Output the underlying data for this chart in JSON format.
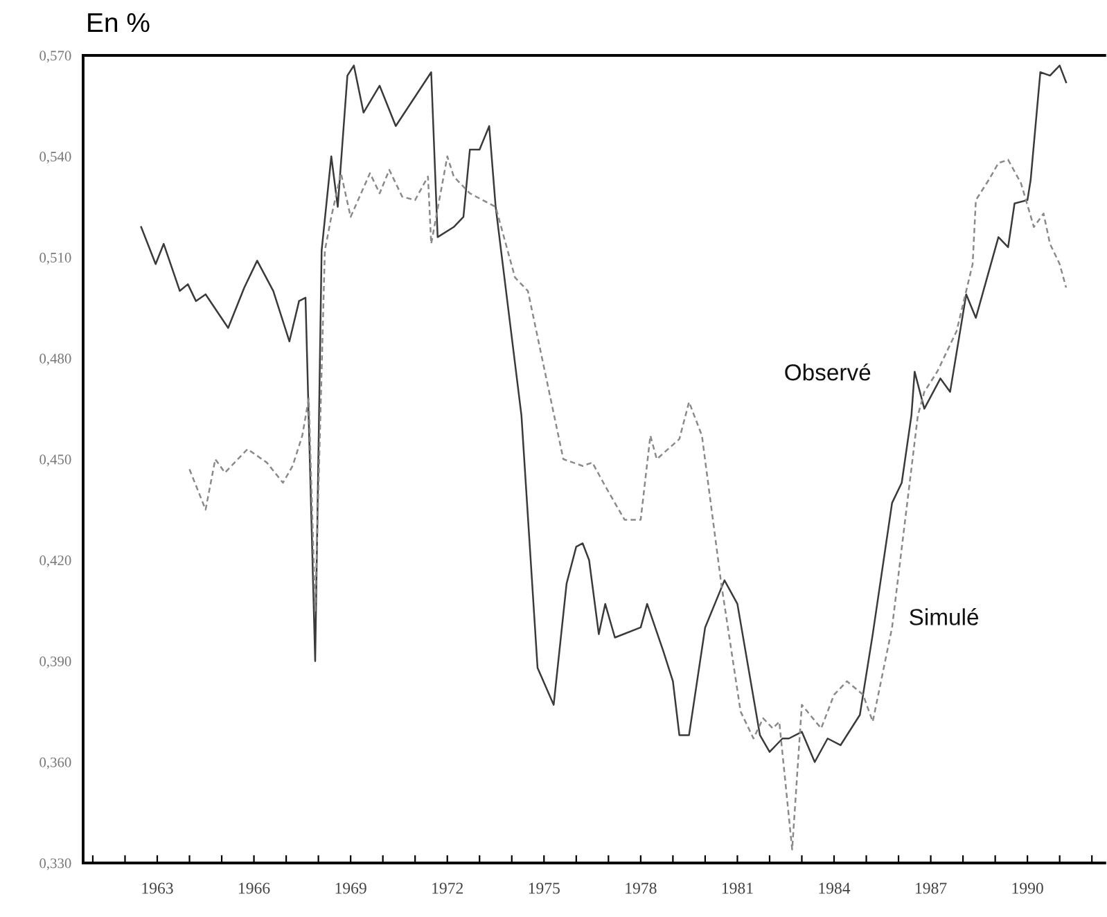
{
  "chart_data": {
    "type": "line",
    "ylabel": "En %",
    "xlim": [
      1960.7,
      1992.4
    ],
    "xticks": [
      {
        "value": 1961,
        "label": null
      },
      {
        "value": 1962,
        "label": null
      },
      1963,
      {
        "value": 1964,
        "label": null
      },
      {
        "value": 1965,
        "label": null
      },
      1966,
      {
        "value": 1967,
        "label": null
      },
      {
        "value": 1968,
        "label": null
      },
      1969,
      {
        "value": 1970,
        "label": null
      },
      {
        "value": 1971,
        "label": null
      },
      1972,
      {
        "value": 1973,
        "label": null
      },
      {
        "value": 1974,
        "label": null
      },
      1975,
      {
        "value": 1976,
        "label": null
      },
      {
        "value": 1977,
        "label": null
      },
      1978,
      {
        "value": 1979,
        "label": null
      },
      {
        "value": 1980,
        "label": null
      },
      1981,
      {
        "value": 1982,
        "label": null
      },
      {
        "value": 1983,
        "label": null
      },
      1984,
      {
        "value": 1985,
        "label": null
      },
      {
        "value": 1986,
        "label": null
      },
      1987,
      {
        "value": 1988,
        "label": null
      },
      {
        "value": 1989,
        "label": null
      },
      1990,
      {
        "value": 1991,
        "label": null
      },
      {
        "value": 1992,
        "label": null
      }
    ],
    "ylim": [
      0.33,
      0.57
    ],
    "yticks": [
      {
        "value": 0.33,
        "label": "0,330"
      },
      {
        "value": 0.36,
        "label": "0,360"
      },
      {
        "value": 0.39,
        "label": "0,390"
      },
      {
        "value": 0.42,
        "label": "0,420"
      },
      {
        "value": 0.45,
        "label": "0,450"
      },
      {
        "value": 0.48,
        "label": "0,480"
      },
      {
        "value": 0.51,
        "label": "0,510"
      },
      {
        "value": 0.54,
        "label": "0,540"
      },
      {
        "value": 0.57,
        "label": "0,570"
      }
    ],
    "grid": false,
    "legend": false,
    "series": [
      {
        "name": "Observé",
        "color": "#3a3a3a",
        "line_style": "solid",
        "x": [
          1962.5,
          1962.95,
          1963.2,
          1963.7,
          1963.95,
          1964.2,
          1964.5,
          1965.2,
          1965.7,
          1966.1,
          1966.6,
          1967.1,
          1967.4,
          1967.6,
          1967.9,
          1968.1,
          1968.4,
          1968.6,
          1968.9,
          1969.1,
          1969.4,
          1969.9,
          1970.4,
          1971.5,
          1971.7,
          1972.2,
          1972.5,
          1972.7,
          1973.0,
          1973.3,
          1973.5,
          1974.3,
          1974.8,
          1975.3,
          1975.7,
          1976.0,
          1976.2,
          1976.4,
          1976.7,
          1976.9,
          1977.2,
          1978.0,
          1978.2,
          1978.7,
          1979.0,
          1979.2,
          1979.5,
          1980.0,
          1980.6,
          1981.0,
          1981.7,
          1982.0,
          1982.4,
          1982.6,
          1983.0,
          1983.4,
          1983.8,
          1984.2,
          1984.8,
          1985.2,
          1985.8,
          1986.1,
          1986.4,
          1986.5,
          1986.8,
          1987.3,
          1987.6,
          1988.1,
          1988.4,
          1989.1,
          1989.4,
          1989.6,
          1990.0,
          1990.1,
          1990.4,
          1990.7,
          1991.0,
          1991.2
        ],
        "values": [
          0.519,
          0.508,
          0.514,
          0.5,
          0.502,
          0.497,
          0.499,
          0.489,
          0.501,
          0.509,
          0.5,
          0.485,
          0.497,
          0.498,
          0.39,
          0.512,
          0.54,
          0.525,
          0.564,
          0.567,
          0.553,
          0.561,
          0.549,
          0.565,
          0.516,
          0.519,
          0.522,
          0.542,
          0.542,
          0.549,
          0.525,
          0.463,
          0.388,
          0.377,
          0.413,
          0.424,
          0.425,
          0.42,
          0.398,
          0.407,
          0.397,
          0.4,
          0.407,
          0.393,
          0.384,
          0.368,
          0.368,
          0.4,
          0.414,
          0.407,
          0.368,
          0.363,
          0.367,
          0.367,
          0.369,
          0.36,
          0.367,
          0.365,
          0.374,
          0.398,
          0.437,
          0.443,
          0.463,
          0.476,
          0.465,
          0.474,
          0.47,
          0.499,
          0.492,
          0.516,
          0.513,
          0.526,
          0.527,
          0.533,
          0.565,
          0.564,
          0.567,
          0.562
        ]
      },
      {
        "name": "Simulé",
        "color": "#8a8a8a",
        "line_style": "dashed",
        "x": [
          1964.0,
          1964.5,
          1964.8,
          1965.1,
          1965.4,
          1965.8,
          1966.4,
          1966.9,
          1967.2,
          1967.5,
          1967.7,
          1967.9,
          1968.2,
          1968.4,
          1968.7,
          1969.0,
          1969.6,
          1969.9,
          1970.2,
          1970.6,
          1971.0,
          1971.4,
          1971.5,
          1972.0,
          1972.2,
          1972.7,
          1973.5,
          1974.1,
          1974.5,
          1975.6,
          1976.2,
          1976.5,
          1976.9,
          1977.5,
          1978.0,
          1978.3,
          1978.5,
          1979.2,
          1979.5,
          1979.9,
          1980.5,
          1981.1,
          1981.5,
          1981.8,
          1982.1,
          1982.3,
          1982.7,
          1983.0,
          1983.6,
          1984.0,
          1984.4,
          1984.9,
          1985.2,
          1985.8,
          1986.6,
          1986.8,
          1987.2,
          1987.8,
          1988.3,
          1988.4,
          1988.8,
          1989.1,
          1989.4,
          1989.8,
          1990.2,
          1990.5,
          1990.7,
          1991.0,
          1991.2
        ],
        "values": [
          0.447,
          0.435,
          0.45,
          0.446,
          0.449,
          0.453,
          0.449,
          0.443,
          0.448,
          0.457,
          0.468,
          0.405,
          0.512,
          0.522,
          0.535,
          0.522,
          0.535,
          0.529,
          0.536,
          0.528,
          0.527,
          0.534,
          0.514,
          0.54,
          0.534,
          0.529,
          0.525,
          0.504,
          0.5,
          0.45,
          0.448,
          0.449,
          0.442,
          0.432,
          0.432,
          0.457,
          0.45,
          0.456,
          0.467,
          0.457,
          0.413,
          0.375,
          0.367,
          0.373,
          0.37,
          0.372,
          0.334,
          0.377,
          0.37,
          0.38,
          0.384,
          0.38,
          0.372,
          0.4,
          0.463,
          0.47,
          0.476,
          0.488,
          0.508,
          0.527,
          0.533,
          0.538,
          0.539,
          0.532,
          0.519,
          0.523,
          0.514,
          0.508,
          0.501
        ]
      }
    ]
  }
}
